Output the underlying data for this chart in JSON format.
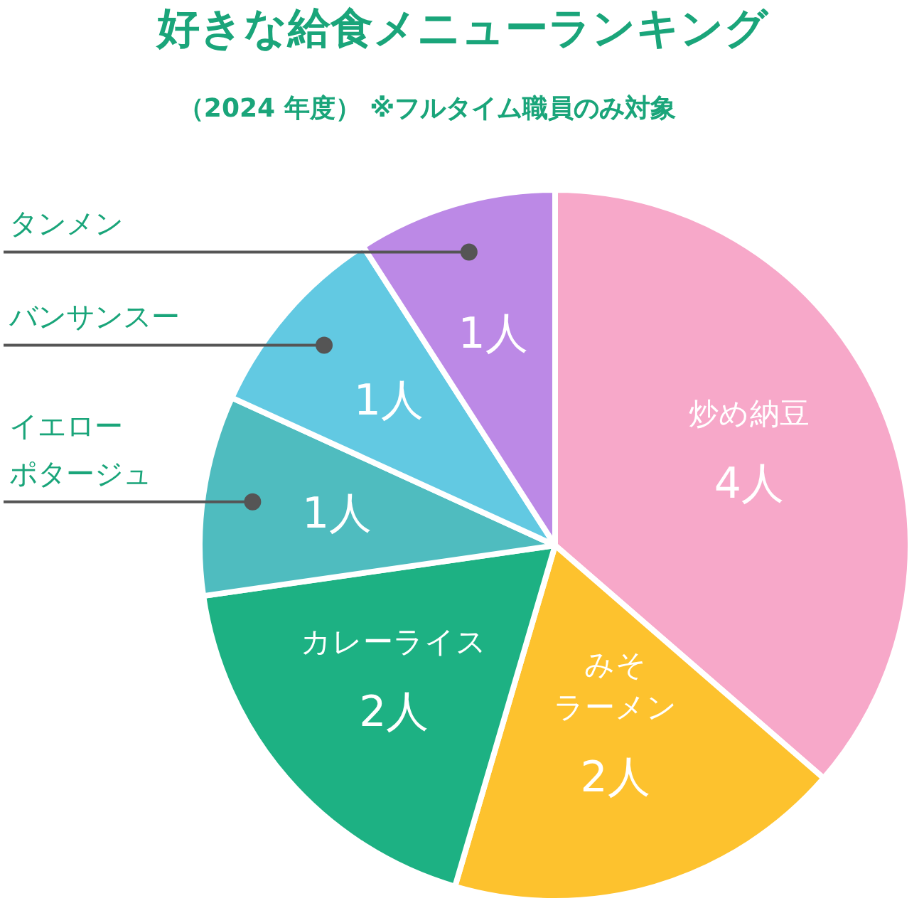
{
  "chart_data": {
    "type": "pie",
    "title": "好きな給食メニューランキング",
    "subtitle": "（2024 年度） ※フルタイム職員のみ対象",
    "categories": [
      "炒め納豆",
      "みそラーメン",
      "カレーライス",
      "イエローポタージュ",
      "バンサンスー",
      "タンメン"
    ],
    "values": [
      4,
      2,
      2,
      1,
      1,
      1
    ],
    "value_labels": [
      "4人",
      "2人",
      "2人",
      "1人",
      "1人",
      "1人"
    ],
    "colors": [
      "#f7a8c9",
      "#fdc22e",
      "#1db183",
      "#4fbcbf",
      "#62c9e2",
      "#bc89e6"
    ]
  }
}
